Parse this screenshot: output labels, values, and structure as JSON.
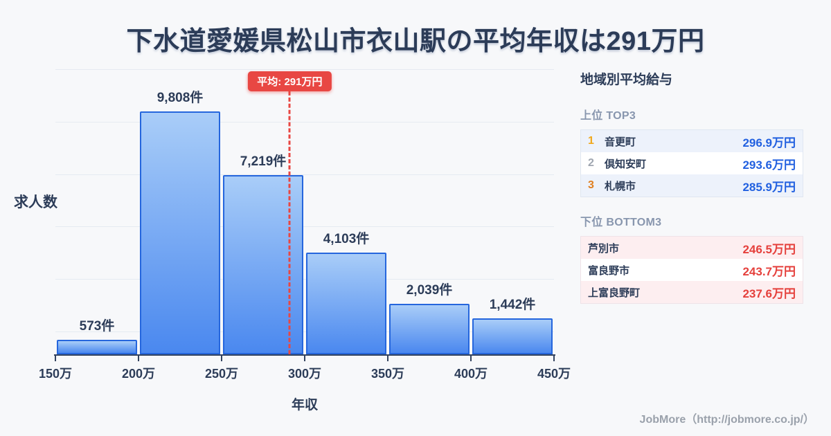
{
  "title": "下水道愛媛県松山市衣山駅の平均年収は291万円",
  "chart_data": {
    "type": "bar",
    "title": "下水道愛媛県松山市衣山駅の平均年収は291万円",
    "xlabel": "年収",
    "ylabel": "求人数",
    "x_tick_labels": [
      "150万",
      "200万",
      "250万",
      "300万",
      "350万",
      "400万",
      "450万"
    ],
    "bin_edges_man_yen": [
      150,
      200,
      250,
      300,
      350,
      400,
      450
    ],
    "values": [
      573,
      9808,
      7219,
      4103,
      2039,
      1442
    ],
    "value_labels": [
      "573件",
      "9,808件",
      "7,219件",
      "4,103件",
      "2,039件",
      "1,442件"
    ],
    "xlim": [
      150,
      450
    ],
    "ylim": [
      0,
      11500
    ],
    "grid": true,
    "legend": false,
    "average_line": {
      "value_man_yen": 291,
      "label": "平均: 291万円"
    }
  },
  "sidebar": {
    "title": "地域別平均給与",
    "top": {
      "heading": "上位 TOP3",
      "rows": [
        {
          "rank": "1",
          "name": "音更町",
          "value": "296.9万円"
        },
        {
          "rank": "2",
          "name": "倶知安町",
          "value": "293.6万円"
        },
        {
          "rank": "3",
          "name": "札幌市",
          "value": "285.9万円"
        }
      ]
    },
    "bottom": {
      "heading": "下位 BOTTOM3",
      "rows": [
        {
          "name": "芦別市",
          "value": "246.5万円"
        },
        {
          "name": "富良野市",
          "value": "243.7万円"
        },
        {
          "name": "上富良野町",
          "value": "237.6万円"
        }
      ]
    }
  },
  "footer": {
    "credit": "JobMore（http://jobmore.co.jp/）"
  },
  "colors": {
    "background": "#f7f8fa",
    "text_dark": "#2c3c58",
    "bar_fill_top": "#a9cdf8",
    "bar_fill_bottom": "#4a88ef",
    "bar_border": "#2566dd",
    "gridline": "#e5eaf1",
    "axis": "#33435f",
    "average_red": "#e84743",
    "top_value_blue": "#2160e0",
    "bottom_value_red": "#e5403c",
    "rank_gold": "#f0a81c",
    "rank_silver": "#9fa6b0",
    "rank_bronze": "#e07f1f",
    "section_heading": "#8896ae",
    "credit_gray": "#9aa1ab"
  }
}
